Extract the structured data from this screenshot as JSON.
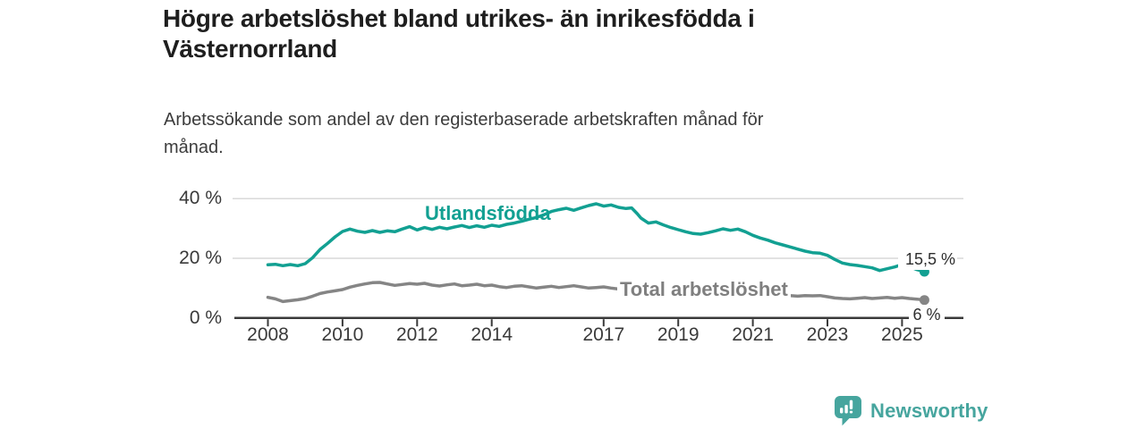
{
  "header": {
    "title_lines": [
      "Högre arbetslöshet bland utrikes- än inrikesfödda i",
      "Västernorrland"
    ],
    "subtitle_lines": [
      "Arbetssökande som andel av den registerbaserade arbetskraften månad för",
      "månad."
    ]
  },
  "chart_data": {
    "type": "line",
    "title": "Högre arbetslöshet bland utrikes- än inrikesfödda i Västernorrland",
    "subtitle": "Arbetssökande som andel av den registerbaserade arbetskraften månad för månad.",
    "xlabel": "",
    "ylabel": "",
    "grid": "horizontal",
    "legend_position": "inline-labels",
    "xlim": [
      2007.1,
      2026.6
    ],
    "ylim": [
      0,
      42
    ],
    "x_ticks": [
      2008,
      2010,
      2012,
      2014,
      2017,
      2019,
      2021,
      2023,
      2025
    ],
    "y_ticks": [
      {
        "value": 0,
        "label": "0 %"
      },
      {
        "value": 20,
        "label": "20 %"
      },
      {
        "value": 40,
        "label": "40 %"
      }
    ],
    "series": [
      {
        "name": "Utlandsfödda",
        "color": "#12a092",
        "end_label": "15,5 %",
        "end_value": 15.5,
        "points": [
          [
            2008,
            17.8
          ],
          [
            2008.2,
            18
          ],
          [
            2008.4,
            17.5
          ],
          [
            2008.6,
            17.9
          ],
          [
            2008.8,
            17.5
          ],
          [
            2009,
            18.2
          ],
          [
            2009.2,
            20.2
          ],
          [
            2009.4,
            23
          ],
          [
            2009.6,
            25
          ],
          [
            2009.8,
            27.2
          ],
          [
            2010,
            29
          ],
          [
            2010.2,
            29.8
          ],
          [
            2010.4,
            29.1
          ],
          [
            2010.6,
            28.7
          ],
          [
            2010.8,
            29.3
          ],
          [
            2011,
            28.7
          ],
          [
            2011.2,
            29.2
          ],
          [
            2011.4,
            28.9
          ],
          [
            2011.6,
            29.8
          ],
          [
            2011.8,
            30.6
          ],
          [
            2012,
            29.5
          ],
          [
            2012.2,
            30.3
          ],
          [
            2012.4,
            29.7
          ],
          [
            2012.6,
            30.4
          ],
          [
            2012.8,
            29.9
          ],
          [
            2013,
            30.5
          ],
          [
            2013.2,
            31
          ],
          [
            2013.4,
            30.3
          ],
          [
            2013.6,
            30.9
          ],
          [
            2013.8,
            30.4
          ],
          [
            2014,
            31.1
          ],
          [
            2014.2,
            30.7
          ],
          [
            2014.4,
            31.4
          ],
          [
            2014.6,
            31.8
          ],
          [
            2014.8,
            32.4
          ],
          [
            2015,
            33.1
          ],
          [
            2015.2,
            33.7
          ],
          [
            2015.4,
            34.6
          ],
          [
            2015.6,
            35.7
          ],
          [
            2015.8,
            36.3
          ],
          [
            2016,
            36.8
          ],
          [
            2016.2,
            36.1
          ],
          [
            2016.4,
            36.9
          ],
          [
            2016.6,
            37.7
          ],
          [
            2016.8,
            38.3
          ],
          [
            2017,
            37.5
          ],
          [
            2017.2,
            37.9
          ],
          [
            2017.4,
            37.1
          ],
          [
            2017.6,
            36.7
          ],
          [
            2017.75,
            36.9
          ],
          [
            2017.9,
            35
          ],
          [
            2018,
            33.5
          ],
          [
            2018.2,
            31.8
          ],
          [
            2018.4,
            32.2
          ],
          [
            2018.6,
            31.2
          ],
          [
            2018.8,
            30.3
          ],
          [
            2019,
            29.6
          ],
          [
            2019.2,
            28.9
          ],
          [
            2019.4,
            28.3
          ],
          [
            2019.6,
            28.1
          ],
          [
            2019.8,
            28.6
          ],
          [
            2020,
            29.2
          ],
          [
            2020.2,
            29.9
          ],
          [
            2020.4,
            29.4
          ],
          [
            2020.6,
            29.8
          ],
          [
            2020.8,
            28.9
          ],
          [
            2021,
            27.7
          ],
          [
            2021.2,
            26.8
          ],
          [
            2021.4,
            26.1
          ],
          [
            2021.6,
            25.2
          ],
          [
            2021.8,
            24.5
          ],
          [
            2022,
            23.8
          ],
          [
            2022.2,
            23.1
          ],
          [
            2022.4,
            22.4
          ],
          [
            2022.6,
            21.9
          ],
          [
            2022.8,
            21.7
          ],
          [
            2023,
            21
          ],
          [
            2023.2,
            19.6
          ],
          [
            2023.4,
            18.4
          ],
          [
            2023.6,
            17.9
          ],
          [
            2023.8,
            17.6
          ],
          [
            2024,
            17.2
          ],
          [
            2024.2,
            16.8
          ],
          [
            2024.4,
            15.9
          ],
          [
            2024.6,
            16.5
          ],
          [
            2024.8,
            17.1
          ],
          [
            2025,
            17.9
          ],
          [
            2025.2,
            17.2
          ],
          [
            2025.4,
            16.2
          ],
          [
            2025.6,
            15.5
          ]
        ]
      },
      {
        "name": "Total arbetslöshet",
        "color": "#858585",
        "label_color": "#7f7f7f",
        "end_label": "6 %",
        "end_value": 6.0,
        "points": [
          [
            2008,
            6.9
          ],
          [
            2008.2,
            6.4
          ],
          [
            2008.4,
            5.5
          ],
          [
            2008.6,
            5.8
          ],
          [
            2008.8,
            6.1
          ],
          [
            2009,
            6.5
          ],
          [
            2009.2,
            7.3
          ],
          [
            2009.4,
            8.2
          ],
          [
            2009.6,
            8.7
          ],
          [
            2009.8,
            9.1
          ],
          [
            2010,
            9.5
          ],
          [
            2010.2,
            10.3
          ],
          [
            2010.4,
            10.9
          ],
          [
            2010.6,
            11.4
          ],
          [
            2010.8,
            11.8
          ],
          [
            2011,
            11.9
          ],
          [
            2011.2,
            11.4
          ],
          [
            2011.4,
            10.9
          ],
          [
            2011.6,
            11.2
          ],
          [
            2011.8,
            11.5
          ],
          [
            2012,
            11.3
          ],
          [
            2012.2,
            11.6
          ],
          [
            2012.4,
            11
          ],
          [
            2012.6,
            10.7
          ],
          [
            2012.8,
            11.1
          ],
          [
            2013,
            11.4
          ],
          [
            2013.2,
            10.8
          ],
          [
            2013.4,
            11
          ],
          [
            2013.6,
            11.3
          ],
          [
            2013.8,
            10.8
          ],
          [
            2014,
            11
          ],
          [
            2014.2,
            10.5
          ],
          [
            2014.4,
            10.2
          ],
          [
            2014.6,
            10.6
          ],
          [
            2014.8,
            10.8
          ],
          [
            2015,
            10.4
          ],
          [
            2015.2,
            10
          ],
          [
            2015.4,
            10.3
          ],
          [
            2015.6,
            10.6
          ],
          [
            2015.8,
            10.2
          ],
          [
            2016,
            10.5
          ],
          [
            2016.2,
            10.8
          ],
          [
            2016.4,
            10.4
          ],
          [
            2016.6,
            10
          ],
          [
            2016.8,
            10.2
          ],
          [
            2017,
            10.4
          ],
          [
            2017.2,
            10
          ],
          [
            2017.4,
            9.7
          ],
          [
            2017.6,
            9.9
          ],
          [
            2017.8,
            9.6
          ],
          [
            2018,
            9.7
          ],
          [
            2018.3,
            9.4
          ],
          [
            2018.6,
            9.5
          ],
          [
            2019,
            9.1
          ],
          [
            2019.4,
            8.9
          ],
          [
            2019.8,
            9
          ],
          [
            2020.2,
            9.3
          ],
          [
            2020.6,
            9.1
          ],
          [
            2021,
            8.6
          ],
          [
            2021.4,
            8.2
          ],
          [
            2021.8,
            7.8
          ],
          [
            2022,
            7.5
          ],
          [
            2022.2,
            7.3
          ],
          [
            2022.4,
            7.5
          ],
          [
            2022.6,
            7.4
          ],
          [
            2022.8,
            7.5
          ],
          [
            2023,
            7.1
          ],
          [
            2023.2,
            6.7
          ],
          [
            2023.4,
            6.5
          ],
          [
            2023.6,
            6.4
          ],
          [
            2023.8,
            6.6
          ],
          [
            2024,
            6.8
          ],
          [
            2024.2,
            6.5
          ],
          [
            2024.4,
            6.7
          ],
          [
            2024.6,
            6.9
          ],
          [
            2024.8,
            6.6
          ],
          [
            2025,
            6.8
          ],
          [
            2025.2,
            6.5
          ],
          [
            2025.4,
            6.3
          ],
          [
            2025.6,
            6
          ]
        ]
      }
    ],
    "colors": {
      "grid": "#d9d9d9",
      "axis": "#3a3a3a",
      "tick_text": "#3a3a3a"
    }
  },
  "branding": {
    "logo_text": "Newsworthy",
    "logo_icon": "bar-chart-speech-bubble-icon",
    "color": "#46a59e"
  }
}
